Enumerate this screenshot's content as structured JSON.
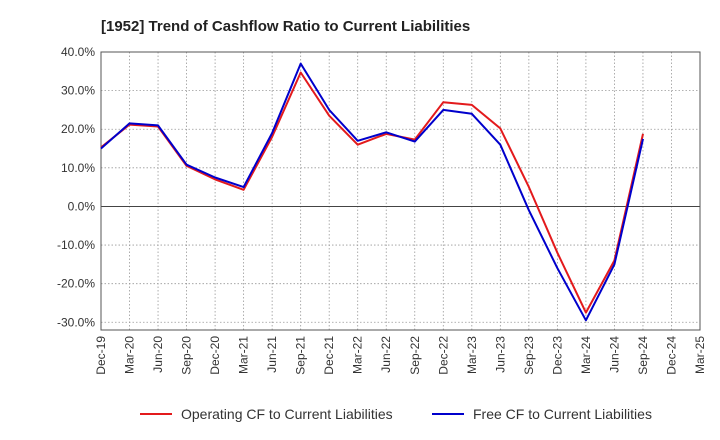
{
  "chart_data": {
    "type": "line",
    "title": "[1952]  Trend of Cashflow Ratio to Current Liabilities",
    "x_ticks": [
      "Dec-19",
      "Mar-20",
      "Jun-20",
      "Sep-20",
      "Dec-20",
      "Mar-21",
      "Jun-21",
      "Sep-21",
      "Dec-21",
      "Mar-22",
      "Jun-22",
      "Sep-22",
      "Dec-22",
      "Mar-23",
      "Jun-23",
      "Sep-23",
      "Dec-23",
      "Mar-24",
      "Jun-24",
      "Sep-24",
      "Dec-24",
      "Mar-25"
    ],
    "y_ticks": [
      "40.0%",
      "30.0%",
      "20.0%",
      "10.0%",
      "0.0%",
      "-10.0%",
      "-20.0%",
      "-30.0%"
    ],
    "ylim": [
      -32,
      40
    ],
    "y_unit": "%",
    "x": [
      "Dec-19",
      "Mar-20",
      "Jun-20",
      "Sep-20",
      "Dec-20",
      "Mar-21",
      "Jun-21",
      "Sep-21",
      "Dec-21",
      "Mar-22",
      "Jun-22",
      "Sep-22",
      "Dec-22",
      "Mar-23",
      "Jun-23",
      "Sep-23",
      "Dec-23",
      "Mar-24",
      "Jun-24",
      "Sep-24"
    ],
    "series": [
      {
        "name": "Operating CF to Current Liabilities",
        "color": "#e31a1c",
        "values": [
          15.3,
          21.2,
          20.7,
          10.5,
          7.0,
          4.3,
          18.0,
          34.7,
          23.5,
          16.0,
          18.8,
          17.3,
          27.0,
          26.3,
          20.2,
          5.0,
          -12.0,
          -27.5,
          -14.0,
          18.8
        ]
      },
      {
        "name": "Free CF to Current Liabilities",
        "color": "#0000cc",
        "values": [
          15.0,
          21.5,
          21.0,
          10.8,
          7.5,
          5.0,
          19.0,
          37.0,
          25.0,
          17.0,
          19.2,
          16.8,
          25.0,
          24.0,
          16.0,
          -1.0,
          -16.0,
          -29.5,
          -15.0,
          17.5
        ]
      }
    ],
    "grid": true,
    "legend": "bottom"
  }
}
